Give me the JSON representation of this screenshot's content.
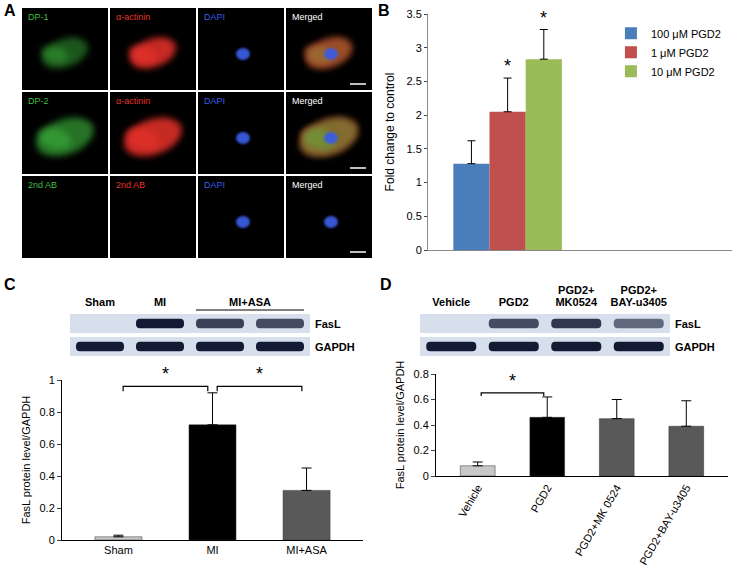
{
  "panel_a": {
    "panel": "A",
    "rows": [
      [
        {
          "label": "DP-1",
          "color": "#3fbf3f"
        },
        {
          "label": "α-actinin",
          "color": "#e8322a"
        },
        {
          "label": "DAPI",
          "color": "#3b5be0"
        },
        {
          "label": "Merged",
          "color": "#ffffff"
        }
      ],
      [
        {
          "label": "DP-2",
          "color": "#3fbf3f"
        },
        {
          "label": "α-actinin",
          "color": "#e8322a"
        },
        {
          "label": "DAPI",
          "color": "#3b5be0"
        },
        {
          "label": "Merged",
          "color": "#ffffff"
        }
      ],
      [
        {
          "label": "2nd AB",
          "color": "#3fbf3f"
        },
        {
          "label": "2nd AB",
          "color": "#e8322a"
        },
        {
          "label": "DAPI",
          "color": "#3b5be0"
        },
        {
          "label": "Merged",
          "color": "#ffffff"
        }
      ]
    ]
  },
  "chart_data": [
    {
      "panel": "B",
      "type": "bar",
      "categories": [
        null
      ],
      "series": [
        {
          "name": "100 μM PGD2",
          "color": "#4a7ebb",
          "values": [
            1.28
          ],
          "errors": [
            0.34
          ]
        },
        {
          "name": "1 μM PGD2",
          "color": "#c0504d",
          "values": [
            2.05
          ],
          "errors": [
            0.5
          ],
          "annotation": "*"
        },
        {
          "name": "10 μM PGD2",
          "color": "#9bbb59",
          "values": [
            2.83
          ],
          "errors": [
            0.44
          ],
          "annotation": "*"
        }
      ],
      "y_label": "Fold change to control",
      "ylim": [
        0,
        3.5
      ],
      "yticks": [
        0,
        0.5,
        1,
        1.5,
        2,
        2.5,
        3,
        3.5
      ],
      "grid": false,
      "legend": "upper right"
    },
    {
      "panel": "C",
      "type": "bar",
      "blot": {
        "lanes": [
          "Sham",
          "MI",
          "MI+ASA",
          "MI+ASA"
        ],
        "bands": [
          {
            "name": "FasL",
            "density": [
              0,
              1,
              0.8,
              0.75
            ]
          },
          {
            "name": "GAPDH",
            "density": [
              1,
              1,
              1,
              1
            ]
          }
        ]
      },
      "categories": [
        "Sham",
        "MI",
        "MI+ASA"
      ],
      "values": [
        0.02,
        0.72,
        0.31
      ],
      "errors": [
        0.01,
        0.2,
        0.14
      ],
      "colors": [
        "#c8c8c8",
        "#000000",
        "#595959"
      ],
      "y_label": "FasL protein level/GAPDH",
      "ylim": [
        0,
        1
      ],
      "yticks": [
        0,
        0.2,
        0.4,
        0.6,
        0.8,
        1
      ],
      "grid": false,
      "comparisons": [
        {
          "from": "Sham",
          "to": "MI",
          "text": "*"
        },
        {
          "from": "MI",
          "to": "MI+ASA",
          "text": "*"
        }
      ]
    },
    {
      "panel": "D",
      "type": "bar",
      "blot": {
        "lanes": [
          "Vehicle",
          "PGD2",
          "PGD2+\nMK0524",
          "PGD2+\nBAY-u3405"
        ],
        "bands": [
          {
            "name": "FasL",
            "density": [
              0,
              0.75,
              0.85,
              0.6
            ]
          },
          {
            "name": "GAPDH",
            "density": [
              1,
              1,
              1,
              1
            ]
          }
        ]
      },
      "categories": [
        "Vehicle",
        "PGD2",
        "PGD2+MK 0524",
        "PGD2+BAY-u3405"
      ],
      "values": [
        0.08,
        0.46,
        0.45,
        0.39
      ],
      "errors": [
        0.03,
        0.16,
        0.15,
        0.2
      ],
      "colors": [
        "#c8c8c8",
        "#000000",
        "#595959",
        "#595959"
      ],
      "y_label": "FasL protein level/GAPDH",
      "ylim": [
        0,
        0.8
      ],
      "yticks": [
        0,
        0.2,
        0.4,
        0.6,
        0.8
      ],
      "grid": false,
      "comparisons": [
        {
          "from": "Vehicle",
          "to": "PGD2",
          "text": "*"
        }
      ]
    }
  ]
}
